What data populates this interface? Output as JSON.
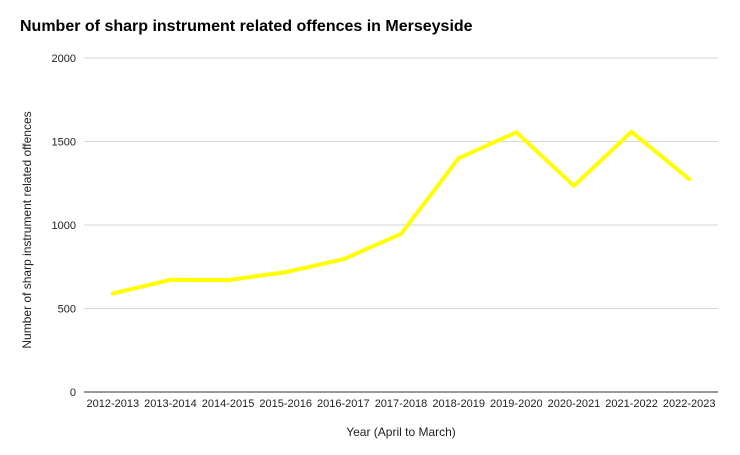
{
  "chart_data": {
    "type": "line",
    "title": "Number of sharp instrument related offences in Merseyside",
    "xlabel": "Year (April to March)",
    "ylabel": "Number of sharp instrument related offences",
    "categories": [
      "2012-2013",
      "2013-2014",
      "2014-2015",
      "2015-2016",
      "2016-2017",
      "2017-2018",
      "2018-2019",
      "2019-2020",
      "2020-2021",
      "2021-2022",
      "2022-2023"
    ],
    "series": [
      {
        "values": [
          590,
          672,
          670,
          718,
          795,
          947,
          1400,
          1555,
          1235,
          1558,
          1275
        ],
        "color": "#ffff00"
      }
    ],
    "ylim": [
      0,
      2000
    ],
    "yticks": [
      0,
      500,
      1000,
      1500,
      2000
    ],
    "grid": true,
    "legend": "none"
  }
}
